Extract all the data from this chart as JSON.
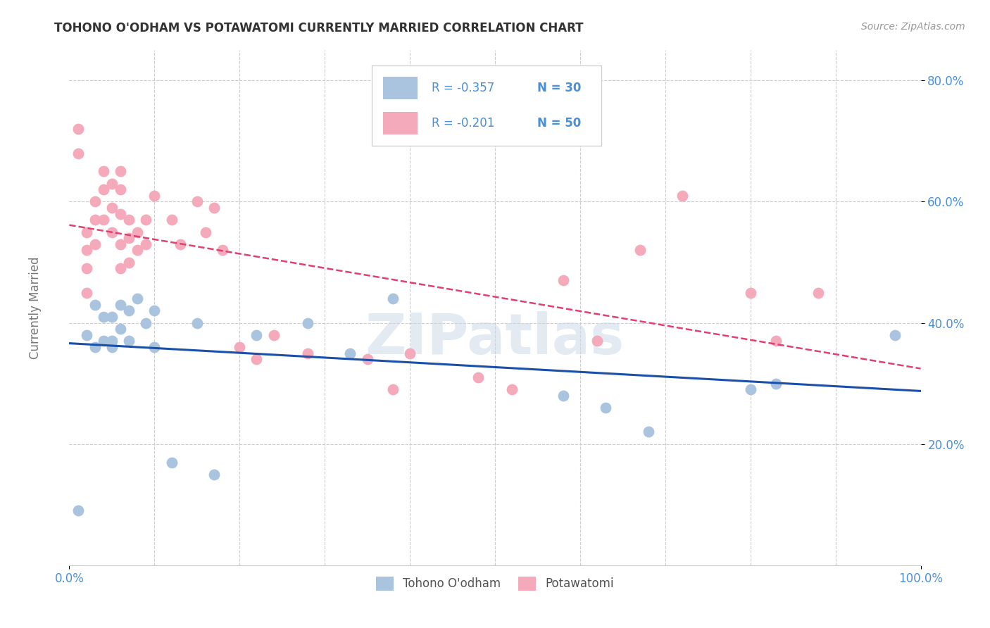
{
  "title": "TOHONO O'ODHAM VS POTAWATOMI CURRENTLY MARRIED CORRELATION CHART",
  "source": "Source: ZipAtlas.com",
  "ylabel": "Currently Married",
  "xlim": [
    0,
    1.0
  ],
  "ylim": [
    0,
    0.85
  ],
  "ytick_positions": [
    0.2,
    0.4,
    0.6,
    0.8
  ],
  "yticklabels": [
    "20.0%",
    "40.0%",
    "60.0%",
    "80.0%"
  ],
  "xtick_positions": [
    0.0,
    1.0
  ],
  "xticklabels": [
    "0.0%",
    "100.0%"
  ],
  "legend_r_blue": "R = -0.357",
  "legend_n_blue": "N = 30",
  "legend_r_pink": "R = -0.201",
  "legend_n_pink": "N = 50",
  "blue_scatter_color": "#aac4e0",
  "pink_scatter_color": "#f5aabb",
  "blue_line_color": "#1a4faa",
  "pink_line_color": "#e04070",
  "blue_label": "Tohono O'odham",
  "pink_label": "Potawatomi",
  "watermark": "ZIPatlas",
  "background_color": "#ffffff",
  "grid_color": "#cccccc",
  "axis_label_color": "#4a90d9",
  "title_color": "#333333",
  "ylabel_color": "#777777",
  "source_color": "#999999",
  "blue_x": [
    0.01,
    0.02,
    0.03,
    0.03,
    0.04,
    0.04,
    0.05,
    0.05,
    0.05,
    0.06,
    0.06,
    0.07,
    0.07,
    0.08,
    0.09,
    0.1,
    0.1,
    0.12,
    0.15,
    0.17,
    0.22,
    0.28,
    0.33,
    0.38,
    0.58,
    0.63,
    0.68,
    0.8,
    0.83,
    0.97
  ],
  "blue_y": [
    0.09,
    0.38,
    0.43,
    0.36,
    0.37,
    0.41,
    0.37,
    0.41,
    0.36,
    0.39,
    0.43,
    0.37,
    0.42,
    0.44,
    0.4,
    0.42,
    0.36,
    0.17,
    0.4,
    0.15,
    0.38,
    0.4,
    0.35,
    0.44,
    0.28,
    0.26,
    0.22,
    0.29,
    0.3,
    0.38
  ],
  "pink_x": [
    0.01,
    0.01,
    0.02,
    0.02,
    0.02,
    0.02,
    0.03,
    0.03,
    0.03,
    0.04,
    0.04,
    0.04,
    0.05,
    0.05,
    0.05,
    0.06,
    0.06,
    0.06,
    0.06,
    0.06,
    0.07,
    0.07,
    0.07,
    0.08,
    0.08,
    0.09,
    0.09,
    0.1,
    0.12,
    0.13,
    0.15,
    0.16,
    0.17,
    0.18,
    0.2,
    0.22,
    0.24,
    0.28,
    0.35,
    0.38,
    0.4,
    0.48,
    0.52,
    0.58,
    0.62,
    0.67,
    0.72,
    0.8,
    0.83,
    0.88
  ],
  "pink_y": [
    0.72,
    0.68,
    0.52,
    0.55,
    0.49,
    0.45,
    0.6,
    0.57,
    0.53,
    0.65,
    0.62,
    0.57,
    0.63,
    0.59,
    0.55,
    0.65,
    0.62,
    0.58,
    0.53,
    0.49,
    0.57,
    0.54,
    0.5,
    0.55,
    0.52,
    0.57,
    0.53,
    0.61,
    0.57,
    0.53,
    0.6,
    0.55,
    0.59,
    0.52,
    0.36,
    0.34,
    0.38,
    0.35,
    0.34,
    0.29,
    0.35,
    0.31,
    0.29,
    0.47,
    0.37,
    0.52,
    0.61,
    0.45,
    0.37,
    0.45
  ]
}
